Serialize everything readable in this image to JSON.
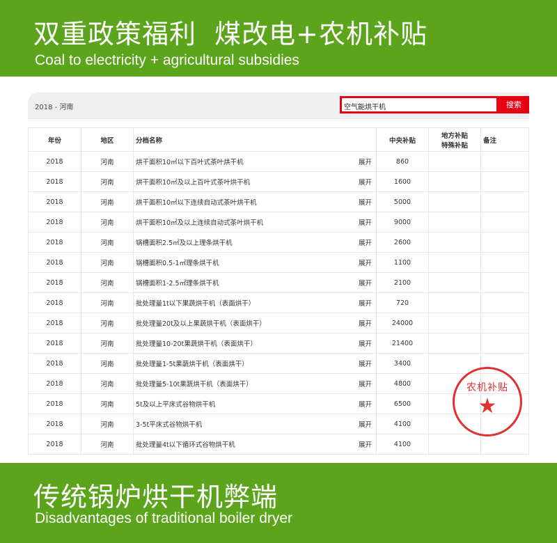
{
  "top_banner": {
    "title": "双重政策福利  煤改电+农机补贴",
    "subtitle": "Coal to electricity + agricultural subsidies"
  },
  "toolbar": {
    "breadcrumb": "2018 - 河南",
    "search_value": "空气能烘干机",
    "search_button": "搜索"
  },
  "table": {
    "headers": [
      "年份",
      "地区",
      "分档名称",
      "中央补贴",
      "地方补贴\n特殊补贴",
      "备注"
    ],
    "expand_label": "展开",
    "rows": [
      [
        "2018",
        "河南",
        "烘干面积10㎡以下百叶式茶叶烘干机",
        "860"
      ],
      [
        "2018",
        "河南",
        "烘干面积10㎡及以上百叶式茶叶烘干机",
        "1600"
      ],
      [
        "2018",
        "河南",
        "烘干面积10㎡以下连续自动式茶叶烘干机",
        "5000"
      ],
      [
        "2018",
        "河南",
        "烘干面积10㎡及以上连续自动式茶叶烘干机",
        "9000"
      ],
      [
        "2018",
        "河南",
        "锅槽面积2.5㎡及以上理条烘干机",
        "2600"
      ],
      [
        "2018",
        "河南",
        "锅槽面积0.5-1㎡理条烘干机",
        "1100"
      ],
      [
        "2018",
        "河南",
        "锅槽面积1-2.5㎡理条烘干机",
        "2100"
      ],
      [
        "2018",
        "河南",
        "批处理量1t以下果蔬烘干机（表面烘干）",
        "720"
      ],
      [
        "2018",
        "河南",
        "批处理量20t及以上果蔬烘干机（表面烘干）",
        "24000"
      ],
      [
        "2018",
        "河南",
        "批处理量10-20t果蔬烘干机（表面烘干）",
        "21400"
      ],
      [
        "2018",
        "河南",
        "批处理量1-5t果蔬烘干机（表面烘干）",
        "3400"
      ],
      [
        "2018",
        "河南",
        "批处理量5-10t果蔬烘干机（表面烘干）",
        "4800"
      ],
      [
        "2018",
        "河南",
        "5t及以上平床式谷物烘干机",
        "6500"
      ],
      [
        "2018",
        "河南",
        "3-5t平床式谷物烘干机",
        "4100"
      ],
      [
        "2018",
        "河南",
        "批处理量4t以下循环式谷物烘干机",
        "4100"
      ]
    ]
  },
  "stamp": {
    "text": "农机补贴",
    "icon": "star-icon",
    "color": "#e03030"
  },
  "bottom_banner": {
    "title": "传统锅炉烘干机弊端",
    "subtitle": "Disadvantages of traditional boiler dryer"
  },
  "colors": {
    "green": "#5ba41c",
    "red": "#e60012"
  }
}
